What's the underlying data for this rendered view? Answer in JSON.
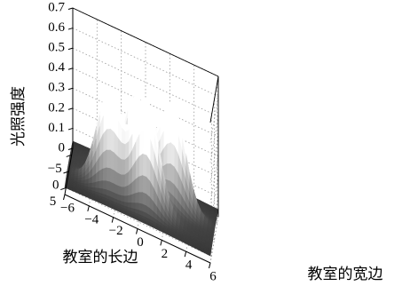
{
  "chart_data": {
    "type": "surface",
    "zlabel": "光照强度",
    "xlabel": "教室的宽边",
    "ylabel": "教室的长边",
    "x_ticks": [
      -6,
      -4,
      -2,
      0,
      2,
      4,
      6
    ],
    "y_ticks": [
      -5,
      0,
      5
    ],
    "z_ticks": [
      "0",
      "0.1",
      "0.2",
      "0.3",
      "0.4",
      "0.5",
      "0.6",
      "0.7"
    ],
    "xlim": [
      -6,
      6
    ],
    "ylim": [
      -7,
      7
    ],
    "zlim": [
      0,
      0.7
    ],
    "grid": true,
    "colormap": "gray",
    "peaks": [
      {
        "x": -2.5,
        "y": 2.5,
        "z": 0.54
      },
      {
        "x": 0.5,
        "y": 3.0,
        "z": 0.6
      },
      {
        "x": -0.5,
        "y": -1.5,
        "z": 0.5
      },
      {
        "x": 2.5,
        "y": -1.0,
        "z": 0.56
      }
    ],
    "base_level": 0.05
  }
}
